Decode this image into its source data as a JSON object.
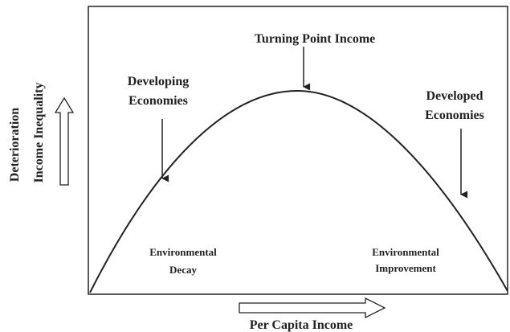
{
  "title": "Turning Point Income",
  "left_labels": {
    "outer": "Deterioration",
    "inner": "Income Inequality"
  },
  "x_label": "Per Capita Income",
  "annotations": {
    "developing": [
      "Developing",
      "Economies"
    ],
    "developed": [
      "Developed",
      "Economies"
    ],
    "decay": [
      "Environmental",
      "Decay"
    ],
    "improvement": [
      "Environmental",
      "Improvement"
    ]
  }
}
